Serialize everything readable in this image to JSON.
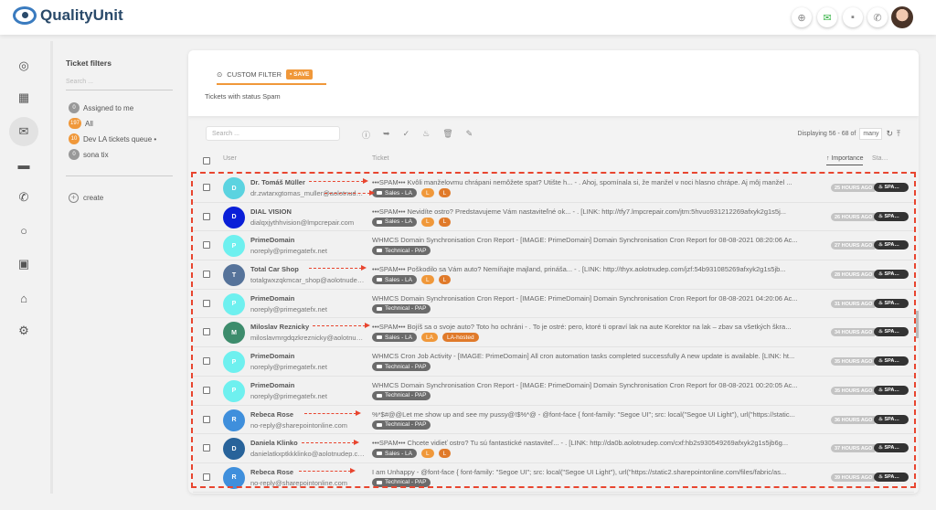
{
  "header": {
    "logo": "QualityUnit",
    "icons": [
      "plus-circle-icon",
      "email-icon",
      "chat-icon",
      "phone-icon"
    ]
  },
  "rail": [
    "check-circle-icon",
    "dashboard-icon",
    "email-icon",
    "chat-icon",
    "phone-icon",
    "circle-icon",
    "contacts-icon",
    "bank-icon",
    "gear-icon"
  ],
  "filters": {
    "title": "Ticket filters",
    "search_placeholder": "Search ...",
    "items": [
      {
        "count": "0",
        "label": "Assigned to me"
      },
      {
        "count": "197",
        "label": "All"
      },
      {
        "count": "10",
        "label": "Dev LA tickets queue •"
      },
      {
        "count": "0",
        "label": "sona tix"
      }
    ],
    "create": "create"
  },
  "main": {
    "custom_filter": "CUSTOM FILTER",
    "save": "SAVE",
    "subtitle": "Tickets with status Spam",
    "search_placeholder": "Search ...",
    "displaying": "Displaying 56 - 68 of",
    "many": "many",
    "columns": {
      "user": "User",
      "ticket": "Ticket",
      "importance": "↑ Importance",
      "status": "Status"
    },
    "rows": [
      {
        "initial": "D",
        "color": "#5bd3e0",
        "name": "Dr. Tomáš Müller",
        "email": "dr.zwtarxgtomas_muller@aolotnudep.com",
        "subject": "•••SPAM••• Kvôli manželovmu chrápani nemôžete spat? Utište h... - . Ahoj, spomínala si, že manžel v noci hlasno chrápe. Aj môj manžel ...",
        "tags": [
          "Sales - LA",
          "L",
          "L"
        ],
        "age": "25 HOURS AGO",
        "status": "SPAM"
      },
      {
        "initial": "D",
        "color": "#0a1fd8",
        "name": "DIAL VISION",
        "email": "dialqxjythhvision@lmpcrepair.com",
        "subject": "•••SPAM••• Nevidíte ostro? Predstavujeme Vám nastaviteľné ok... - . [LINK: http://tfy7.lmpcrepair.com/jtm:5hvuo931212269afxyk2g1s5j...",
        "tags": [
          "Sales - LA",
          "L",
          "L"
        ],
        "age": "26 HOURS AGO",
        "status": "SPAM"
      },
      {
        "initial": "P",
        "color": "#6ef0ef",
        "name": "PrimeDomain",
        "email": "noreply@primegatefx.net",
        "subject": "WHMCS Domain Synchronisation Cron Report - [IMAGE: PrimeDomain] Domain Synchronisation Cron Report for 08-08-2021 08:20:06 Ac...",
        "tags": [
          "Technical - PAP"
        ],
        "age": "27 HOURS AGO",
        "status": "SPAM"
      },
      {
        "initial": "T",
        "color": "#56739a",
        "name": "Total Car Shop",
        "email": "totalgwxzqkmcar_shop@aolotnudep.com",
        "subject": "•••SPAM••• Poškodilo sa Vám auto? Nemíňajte majland, prinášа... - . [LINK: http://thyx.aolotnudep.com/jzf:54b931085269afxyk2g1s5jb...",
        "tags": [
          "Sales - LA",
          "L",
          "L"
        ],
        "age": "28 HOURS AGO",
        "status": "SPAM"
      },
      {
        "initial": "P",
        "color": "#6ef0ef",
        "name": "PrimeDomain",
        "email": "noreply@primegatefx.net",
        "subject": "WHMCS Domain Synchronisation Cron Report - [IMAGE: PrimeDomain] Domain Synchronisation Cron Report for 08-08-2021 04:20:06 Ac...",
        "tags": [
          "Technical - PAP"
        ],
        "age": "31 HOURS AGO",
        "status": "SPAM"
      },
      {
        "initial": "M",
        "color": "#3d8c6c",
        "name": "Miloslav Reznicky",
        "email": "miloslavmrgdqzkreznicky@aolotnudep.com",
        "subject": "•••SPAM••• Bojíš sa o svoje auto? Toto ho ochráni - . To je ostré: pero, ktoré ti opraví lak na aute Korektor na lak – zbav sa všetkých škra...",
        "tags": [
          "Sales - LA",
          "LA",
          "LA-hosted"
        ],
        "age": "34 HOURS AGO",
        "status": "SPAM"
      },
      {
        "initial": "P",
        "color": "#6ef0ef",
        "name": "PrimeDomain",
        "email": "noreply@primegatefx.net",
        "subject": "WHMCS Cron Job Activity - [IMAGE: PrimeDomain] All cron automation tasks completed successfully A new update is available. [LINK: ht...",
        "tags": [
          "Technical - PAP"
        ],
        "age": "35 HOURS AGO",
        "status": "SPAM"
      },
      {
        "initial": "P",
        "color": "#6ef0ef",
        "name": "PrimeDomain",
        "email": "noreply@primegatefx.net",
        "subject": "WHMCS Domain Synchronisation Cron Report - [IMAGE: PrimeDomain] Domain Synchronisation Cron Report for 08-08-2021 00:20:05 Ac...",
        "tags": [
          "Technical - PAP"
        ],
        "age": "35 HOURS AGO",
        "status": "SPAM"
      },
      {
        "initial": "R",
        "color": "#3f8fdc",
        "name": "Rebeca Rose",
        "email": "no-reply@sharepointonline.com",
        "subject": "%*$#@@Let me show up and see my pussy@!$%*@ - @font-face { font-family: \"Segoe UI\"; src: local(\"Segoe UI Light\"), url(\"https://static...",
        "tags": [
          "Technical - PAP"
        ],
        "age": "36 HOURS AGO",
        "status": "SPAM"
      },
      {
        "initial": "D",
        "color": "#28639a",
        "name": "Daniela Klinko",
        "email": "danielatkxptkkklinko@aolotnudep.com",
        "subject": "•••SPAM••• Chcete vidieť ostro? Tu sú fantastické nastaviteľ... - . [LINK: http://da0b.aolotnudep.com/cxf:hb2s930549269afxyk2g1s5jb6g...",
        "tags": [
          "Sales - LA",
          "L",
          "L"
        ],
        "age": "37 HOURS AGO",
        "status": "SPAM"
      },
      {
        "initial": "R",
        "color": "#3f8fdc",
        "name": "Rebeca Rose",
        "email": "no-reply@sharepointonline.com",
        "subject": "I am Unhappy - @font-face { font-family: \"Segoe UI\"; src: local(\"Segoe UI Light\"), url(\"https://static2.sharepointonline.com/files/fabric/as...",
        "tags": [
          "Technical - PAP"
        ],
        "age": "39 HOURS AGO",
        "status": "SPAM"
      }
    ]
  },
  "colors": {
    "accent": "#f0983a",
    "annotation": "#e8452f",
    "status_badge": "#333333"
  }
}
